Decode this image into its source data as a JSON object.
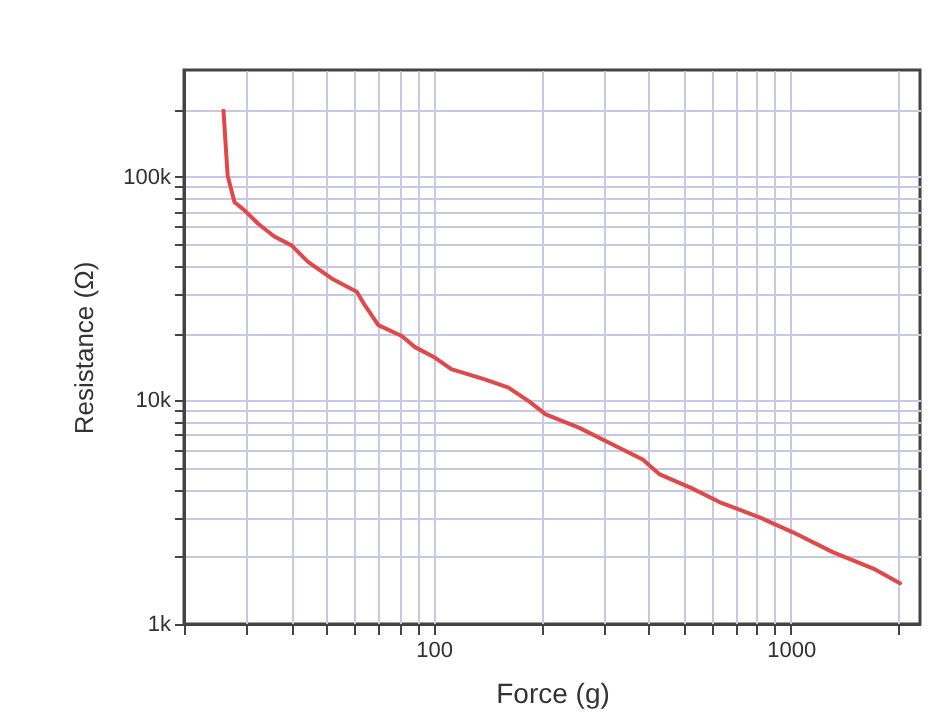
{
  "chart_data": {
    "type": "line",
    "xlabel": "Force (g)",
    "ylabel": "Resistance (Ω)",
    "log": "xy",
    "grid": true,
    "xlim": [
      20,
      2300
    ],
    "ylim": [
      1000,
      300000
    ],
    "xticks": [
      {
        "value": 20,
        "label": null
      },
      {
        "value": 30,
        "label": null
      },
      {
        "value": 40,
        "label": null
      },
      {
        "value": 50,
        "label": null
      },
      {
        "value": 60,
        "label": null
      },
      {
        "value": 70,
        "label": null
      },
      {
        "value": 80,
        "label": null
      },
      {
        "value": 90,
        "label": null
      },
      100,
      {
        "value": 200,
        "label": null
      },
      {
        "value": 300,
        "label": null
      },
      {
        "value": 400,
        "label": null
      },
      {
        "value": 500,
        "label": null
      },
      {
        "value": 600,
        "label": null
      },
      {
        "value": 700,
        "label": null
      },
      {
        "value": 800,
        "label": null
      },
      {
        "value": 900,
        "label": null
      },
      1000,
      {
        "value": 2000,
        "label": null
      }
    ],
    "yticks": [
      {
        "value": 1000,
        "label": "1k"
      },
      {
        "value": 2000,
        "label": null
      },
      {
        "value": 3000,
        "label": null
      },
      {
        "value": 4000,
        "label": null
      },
      {
        "value": 5000,
        "label": null
      },
      {
        "value": 6000,
        "label": null
      },
      {
        "value": 7000,
        "label": null
      },
      {
        "value": 8000,
        "label": null
      },
      {
        "value": 9000,
        "label": null
      },
      {
        "value": 10000,
        "label": "10k"
      },
      {
        "value": 20000,
        "label": null
      },
      {
        "value": 30000,
        "label": null
      },
      {
        "value": 40000,
        "label": null
      },
      {
        "value": 50000,
        "label": null
      },
      {
        "value": 60000,
        "label": null
      },
      {
        "value": 70000,
        "label": null
      },
      {
        "value": 80000,
        "label": null
      },
      {
        "value": 90000,
        "label": null
      },
      {
        "value": 100000,
        "label": "100k"
      },
      {
        "value": 200000,
        "label": null
      }
    ],
    "x": [
      25.8,
      26.5,
      27.7,
      29.5,
      32.2,
      35.8,
      40,
      44.5,
      51.8,
      60.9,
      64.1,
      70,
      81.4,
      88.7,
      101,
      112,
      139,
      162,
      185,
      206,
      255,
      317,
      385,
      428,
      531,
      631,
      817,
      1014,
      1315,
      1702,
      2021
    ],
    "series": [
      {
        "color": "#e0484a",
        "values": [
          197000,
          101000,
          76900,
          70900,
          61800,
          54000,
          49300,
          41600,
          35100,
          30600,
          26700,
          21700,
          19400,
          17300,
          15500,
          13800,
          12400,
          11400,
          9900,
          8650,
          7550,
          6350,
          5440,
          4680,
          4030,
          3510,
          3000,
          2570,
          2090,
          1770,
          1520
        ]
      }
    ]
  }
}
